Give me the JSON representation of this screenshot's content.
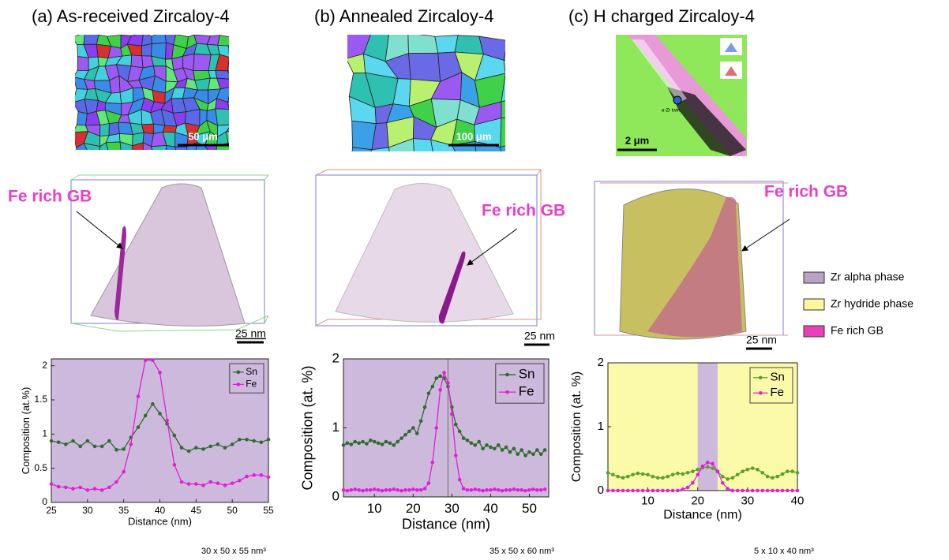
{
  "panels": [
    {
      "title": "(a) As-received Zircaloy-4",
      "scale_bar": "50 μm",
      "annotation": "Fe rich GB",
      "scale_bar_3d": "25 nm",
      "volume": "30 x 50 x 55 nm³"
    },
    {
      "title": "(b) Annealed Zircaloy-4",
      "scale_bar": "100 μm",
      "annotation": "Fe rich GB",
      "scale_bar_3d": "25 nm",
      "volume": "35 x 50 x 60 nm³"
    },
    {
      "title": "(c) H charged Zircaloy-4",
      "scale_bar": "2 μm",
      "image_label": "α-Zr twin",
      "annotation": "Fe rich GB",
      "scale_bar_3d": "25 nm",
      "volume": "5 x 10 x 40 nm³"
    }
  ],
  "phase_legend": [
    {
      "label": "Zr alpha phase",
      "color": "#b9a3c5"
    },
    {
      "label": "Zr hydride phase",
      "color": "#fbf79a"
    },
    {
      "label": "Fe rich GB",
      "color": "#ea3fb8"
    }
  ],
  "chart_data": [
    {
      "type": "line",
      "x_label": "Distance (nm)",
      "y_label": "Composition (at.%)",
      "background": "#cdb9db",
      "legend": "upper right",
      "x": [
        25,
        26,
        27,
        28,
        29,
        30,
        31,
        32,
        33,
        34,
        35,
        36,
        37,
        38,
        39,
        40,
        41,
        42,
        43,
        44,
        45,
        46,
        47,
        48,
        49,
        50,
        51,
        52,
        53,
        54,
        55
      ],
      "xlim": [
        25,
        55
      ],
      "xticks": [
        25,
        30,
        35,
        40,
        45,
        50,
        55
      ],
      "ylim": [
        0,
        2.1
      ],
      "yticks": [
        0,
        0.5,
        1,
        1.5,
        2
      ],
      "series": [
        {
          "name": "Sn",
          "color": "#2f6b2f",
          "values": [
            0.9,
            0.88,
            0.85,
            0.9,
            0.82,
            0.9,
            0.82,
            0.82,
            0.9,
            0.77,
            0.78,
            0.95,
            1.1,
            1.27,
            1.44,
            1.3,
            1.15,
            0.98,
            0.8,
            0.75,
            0.8,
            0.78,
            0.82,
            0.85,
            0.8,
            0.85,
            0.92,
            0.92,
            0.9,
            0.88,
            0.92
          ]
        },
        {
          "name": "Fe",
          "color": "#e020d8",
          "values": [
            0.27,
            0.23,
            0.22,
            0.2,
            0.22,
            0.18,
            0.2,
            0.18,
            0.22,
            0.3,
            0.45,
            0.85,
            1.55,
            2.08,
            2.08,
            1.9,
            1.2,
            0.55,
            0.3,
            0.27,
            0.27,
            0.25,
            0.3,
            0.28,
            0.25,
            0.28,
            0.32,
            0.38,
            0.4,
            0.4,
            0.37
          ]
        }
      ]
    },
    {
      "type": "line",
      "x_label": "Distance (nm)",
      "y_label": "Composition (at. %)",
      "background": "#cdb9db",
      "legend": "upper right",
      "vline": 29,
      "x": [
        2,
        3,
        4,
        5,
        6,
        7,
        8,
        9,
        10,
        11,
        12,
        13,
        14,
        15,
        16,
        17,
        18,
        19,
        20,
        21,
        22,
        23,
        24,
        25,
        26,
        27,
        28,
        29,
        30,
        31,
        32,
        33,
        34,
        35,
        36,
        37,
        38,
        39,
        40,
        41,
        42,
        43,
        44,
        45,
        46,
        47,
        48,
        49,
        50,
        51,
        52,
        53,
        54
      ],
      "xlim": [
        2,
        55
      ],
      "xticks": [
        10,
        20,
        30,
        40,
        50
      ],
      "ylim": [
        0,
        2
      ],
      "yticks": [
        0,
        1,
        2
      ],
      "series": [
        {
          "name": "Sn",
          "color": "#2f6b2f",
          "values": [
            0.75,
            0.78,
            0.76,
            0.8,
            0.78,
            0.8,
            0.77,
            0.82,
            0.8,
            0.78,
            0.76,
            0.8,
            0.78,
            0.75,
            0.8,
            0.85,
            0.9,
            0.95,
            1.0,
            0.92,
            1.1,
            1.3,
            1.5,
            1.6,
            1.72,
            1.75,
            1.72,
            1.6,
            1.3,
            1.05,
            0.95,
            0.85,
            0.82,
            0.78,
            0.75,
            0.8,
            0.7,
            0.75,
            0.72,
            0.7,
            0.75,
            0.68,
            0.72,
            0.65,
            0.7,
            0.62,
            0.68,
            0.6,
            0.65,
            0.62,
            0.68,
            0.62,
            0.68
          ]
        },
        {
          "name": "Fe",
          "color": "#e020d8",
          "values": [
            0.1,
            0.09,
            0.1,
            0.11,
            0.1,
            0.09,
            0.1,
            0.1,
            0.11,
            0.1,
            0.09,
            0.1,
            0.1,
            0.11,
            0.1,
            0.09,
            0.1,
            0.1,
            0.11,
            0.1,
            0.1,
            0.12,
            0.2,
            0.5,
            1.0,
            1.55,
            1.8,
            1.65,
            1.2,
            0.6,
            0.25,
            0.12,
            0.1,
            0.1,
            0.11,
            0.1,
            0.09,
            0.1,
            0.1,
            0.11,
            0.1,
            0.09,
            0.1,
            0.1,
            0.11,
            0.1,
            0.1,
            0.09,
            0.1,
            0.11,
            0.1,
            0.1,
            0.11
          ]
        }
      ]
    },
    {
      "type": "line",
      "x_label": "Distance (nm)",
      "y_label": "Composition (at. %)",
      "background": "#fbfaa9",
      "legend": "upper right",
      "bands": [
        {
          "x0": 20,
          "x1": 24,
          "color": "#cdb9db"
        }
      ],
      "x": [
        2,
        3,
        4,
        5,
        6,
        7,
        8,
        9,
        10,
        11,
        12,
        13,
        14,
        15,
        16,
        17,
        18,
        19,
        20,
        21,
        22,
        23,
        24,
        25,
        26,
        27,
        28,
        29,
        30,
        31,
        32,
        33,
        34,
        35,
        36,
        37,
        38,
        39,
        40
      ],
      "xlim": [
        2,
        40
      ],
      "xticks": [
        10,
        20,
        30,
        40
      ],
      "ylim": [
        0,
        2
      ],
      "yticks": [
        0,
        1,
        2
      ],
      "series": [
        {
          "name": "Sn",
          "color": "#5aa02c",
          "values": [
            0.28,
            0.25,
            0.22,
            0.2,
            0.22,
            0.25,
            0.27,
            0.26,
            0.25,
            0.22,
            0.2,
            0.2,
            0.22,
            0.25,
            0.27,
            0.26,
            0.28,
            0.3,
            0.33,
            0.36,
            0.37,
            0.35,
            0.3,
            0.22,
            0.18,
            0.2,
            0.25,
            0.3,
            0.33,
            0.35,
            0.33,
            0.28,
            0.22,
            0.2,
            0.22,
            0.26,
            0.3,
            0.3,
            0.28
          ]
        },
        {
          "name": "Fe",
          "color": "#e020d8",
          "values": [
            0,
            0,
            0,
            0,
            0,
            0,
            0,
            0,
            0,
            0,
            0,
            0,
            0,
            0,
            0,
            0.02,
            0.05,
            0.12,
            0.25,
            0.38,
            0.44,
            0.42,
            0.3,
            0.12,
            0.03,
            0,
            0,
            0,
            0,
            0,
            0,
            0,
            0,
            0,
            0,
            0,
            0,
            0,
            0
          ]
        }
      ]
    }
  ]
}
